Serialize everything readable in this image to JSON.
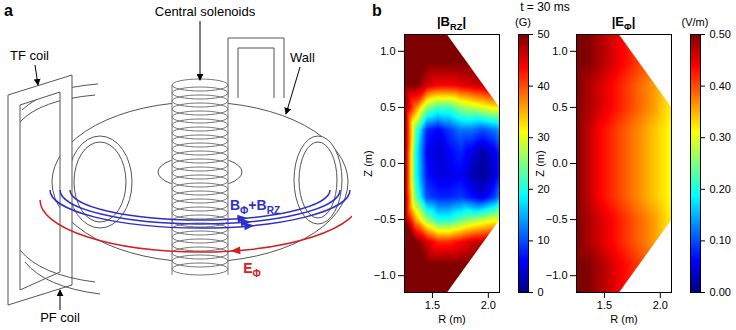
{
  "diagram": {
    "letter": "a",
    "labels": {
      "tf_coil": "TF coil",
      "solenoid": "Central solenoids",
      "wall": "Wall",
      "pf_coil": "PF coil"
    },
    "field_label": [
      {
        "text": "B",
        "sub": "Φ"
      },
      {
        "text": "+B",
        "sub": "RZ"
      }
    ],
    "field_color": "#2f2fc8",
    "e_label": [
      {
        "text": "E",
        "sub": "Φ"
      }
    ],
    "e_color": "#d42020"
  },
  "panel_b": {
    "letter": "b",
    "title": "t = 30 ms"
  },
  "chart_data": [
    {
      "type": "heatmap",
      "title": [
        {
          "text": "|B",
          "sub": "RZ"
        },
        {
          "text": "|"
        }
      ],
      "colorbar_label": "(G)",
      "xlabel": "R (m)",
      "ylabel": "Z (m)",
      "xlim": [
        1.25,
        2.1
      ],
      "ylim": [
        -1.15,
        1.15
      ],
      "xticks": [
        1.5,
        2
      ],
      "yticks": [
        -1,
        -0.5,
        0,
        0.5,
        1
      ],
      "boundary": [
        [
          1.25,
          1.15
        ],
        [
          1.63,
          1.15
        ],
        [
          2.1,
          0.5
        ],
        [
          2.1,
          -0.5
        ],
        [
          1.63,
          -1.15
        ],
        [
          1.25,
          -1.15
        ]
      ],
      "R": [
        1.25,
        1.35,
        1.45,
        1.55,
        1.65,
        1.75,
        1.85,
        1.95,
        2.05,
        2.1
      ],
      "Z": [
        1.15,
        0.9,
        0.7,
        0.5,
        0.3,
        0.1,
        -0.1,
        -0.3,
        -0.5,
        -0.7,
        -0.9,
        -1.15
      ],
      "values": [
        [
          50,
          50,
          50,
          50,
          50,
          50,
          50,
          50,
          50,
          50
        ],
        [
          50,
          50,
          50,
          50,
          50,
          50,
          50,
          50,
          50,
          50
        ],
        [
          50,
          50,
          46,
          44,
          44,
          45,
          46,
          47,
          48,
          48
        ],
        [
          50,
          38,
          26,
          22,
          22,
          26,
          28,
          30,
          32,
          32
        ],
        [
          50,
          24,
          8,
          6,
          9,
          12,
          12,
          10,
          12,
          14
        ],
        [
          50,
          20,
          6,
          4,
          6,
          8,
          5,
          2,
          5,
          8
        ],
        [
          50,
          20,
          7,
          5,
          5,
          6,
          3,
          1,
          4,
          8
        ],
        [
          50,
          24,
          10,
          8,
          8,
          9,
          7,
          5,
          9,
          13
        ],
        [
          50,
          36,
          26,
          20,
          20,
          23,
          26,
          28,
          30,
          30
        ],
        [
          50,
          50,
          46,
          42,
          42,
          44,
          46,
          47,
          48,
          48
        ],
        [
          50,
          50,
          50,
          50,
          50,
          50,
          50,
          50,
          50,
          50
        ],
        [
          50,
          50,
          50,
          50,
          50,
          50,
          50,
          50,
          50,
          50
        ]
      ],
      "clim": [
        0,
        50
      ],
      "cticks": [
        0,
        10,
        20,
        30,
        40,
        50
      ]
    },
    {
      "type": "heatmap",
      "title": [
        {
          "text": "|E",
          "sub": "Φ"
        },
        {
          "text": "|"
        }
      ],
      "colorbar_label": "(V/m)",
      "xlabel": "R (m)",
      "ylabel": "Z (m)",
      "xlim": [
        1.25,
        2.1
      ],
      "ylim": [
        -1.15,
        1.15
      ],
      "xticks": [
        1.5,
        2
      ],
      "yticks": [
        -1,
        -0.5,
        0,
        0.5,
        1
      ],
      "boundary": [
        [
          1.25,
          1.15
        ],
        [
          1.63,
          1.15
        ],
        [
          2.1,
          0.5
        ],
        [
          2.1,
          -0.5
        ],
        [
          1.63,
          -1.15
        ],
        [
          1.25,
          -1.15
        ]
      ],
      "R": [
        1.25,
        1.35,
        1.45,
        1.55,
        1.65,
        1.75,
        1.85,
        1.95,
        2.05,
        2.1
      ],
      "Z": [
        1.15,
        0.9,
        0.7,
        0.5,
        0.3,
        0.1,
        -0.1,
        -0.3,
        -0.5,
        -0.7,
        -0.9,
        -1.15
      ],
      "values": [
        [
          0.5,
          0.5,
          0.48,
          0.46,
          0.44,
          0.42,
          0.4,
          0.38,
          0.36,
          0.35
        ],
        [
          0.5,
          0.5,
          0.48,
          0.46,
          0.44,
          0.42,
          0.4,
          0.38,
          0.36,
          0.35
        ],
        [
          0.5,
          0.48,
          0.46,
          0.44,
          0.42,
          0.4,
          0.38,
          0.36,
          0.33,
          0.32
        ],
        [
          0.5,
          0.48,
          0.46,
          0.44,
          0.42,
          0.4,
          0.38,
          0.36,
          0.33,
          0.32
        ],
        [
          0.5,
          0.47,
          0.44,
          0.42,
          0.4,
          0.38,
          0.36,
          0.34,
          0.32,
          0.31
        ],
        [
          0.5,
          0.47,
          0.44,
          0.42,
          0.4,
          0.38,
          0.36,
          0.34,
          0.32,
          0.31
        ],
        [
          0.5,
          0.47,
          0.44,
          0.42,
          0.4,
          0.38,
          0.36,
          0.34,
          0.32,
          0.31
        ],
        [
          0.5,
          0.47,
          0.44,
          0.42,
          0.4,
          0.38,
          0.36,
          0.34,
          0.32,
          0.31
        ],
        [
          0.5,
          0.48,
          0.46,
          0.44,
          0.42,
          0.4,
          0.38,
          0.36,
          0.33,
          0.32
        ],
        [
          0.5,
          0.48,
          0.46,
          0.44,
          0.42,
          0.4,
          0.38,
          0.36,
          0.33,
          0.32
        ],
        [
          0.5,
          0.5,
          0.48,
          0.46,
          0.44,
          0.42,
          0.4,
          0.38,
          0.36,
          0.35
        ],
        [
          0.5,
          0.5,
          0.48,
          0.46,
          0.44,
          0.42,
          0.4,
          0.38,
          0.36,
          0.35
        ]
      ],
      "clim": [
        0,
        0.5
      ],
      "cticks": [
        0,
        0.1,
        0.2,
        0.3,
        0.4,
        0.5
      ]
    }
  ]
}
